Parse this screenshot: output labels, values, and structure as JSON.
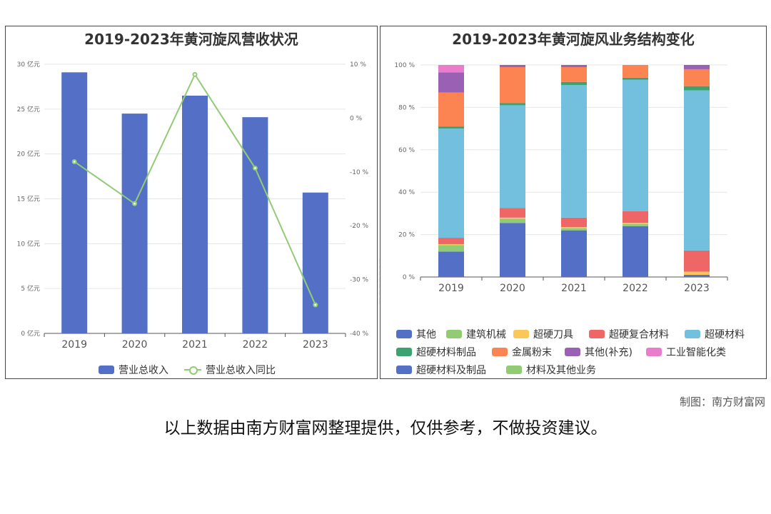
{
  "credit": "制图：南方财富网",
  "disclaimer": "以上数据由南方财富网整理提供，仅供参考，不做投资建议。",
  "watermark": "南方财富网",
  "chart_data": [
    {
      "type": "bar",
      "title": "2019-2023年黄河旋风营收状况",
      "categories": [
        "2019",
        "2020",
        "2021",
        "2022",
        "2023"
      ],
      "series": [
        {
          "name": "营业总收入",
          "type": "bar",
          "axis": "left",
          "color": "#5470c6",
          "values": [
            29.1,
            24.5,
            26.5,
            24.1,
            15.7
          ]
        },
        {
          "name": "营业总收入同比",
          "type": "line",
          "axis": "right",
          "color": "#91cc75",
          "values": [
            -8.1,
            -15.9,
            8.1,
            -9.3,
            -34.7
          ]
        }
      ],
      "y_left": {
        "min": 0,
        "max": 30,
        "ticks": [
          {
            "v": 0,
            "label": "0 亿元"
          },
          {
            "v": 5,
            "label": "5 亿元"
          },
          {
            "v": 10,
            "label": "10 亿元"
          },
          {
            "v": 15,
            "label": "15 亿元"
          },
          {
            "v": 20,
            "label": "20 亿元"
          },
          {
            "v": 25,
            "label": "25 亿元"
          },
          {
            "v": 30,
            "label": "30 亿元"
          }
        ]
      },
      "y_right": {
        "min": -40,
        "max": 10,
        "ticks": [
          {
            "v": -40,
            "label": "-40 %"
          },
          {
            "v": -30,
            "label": "-30 %"
          },
          {
            "v": -20,
            "label": "-20 %"
          },
          {
            "v": -10,
            "label": "-10 %"
          },
          {
            "v": 0,
            "label": "0 %"
          },
          {
            "v": 10,
            "label": "10 %"
          }
        ]
      },
      "grid": true,
      "legend_position": "bottom"
    },
    {
      "type": "bar",
      "stacked": true,
      "title": "2019-2023年黄河旋风业务结构变化",
      "categories": [
        "2019",
        "2020",
        "2021",
        "2022",
        "2023"
      ],
      "series": [
        {
          "name": "其他",
          "color": "#5470c6",
          "values": [
            12,
            25.5,
            22,
            24,
            1
          ]
        },
        {
          "name": "建筑机械",
          "color": "#91cc75",
          "values": [
            3,
            2,
            1,
            1,
            0
          ]
        },
        {
          "name": "超硬刀具",
          "color": "#fac858",
          "values": [
            0.5,
            0.5,
            0.5,
            0.5,
            1.5
          ]
        },
        {
          "name": "超硬复合材料",
          "color": "#ee6666",
          "values": [
            3,
            4.5,
            4.5,
            5.5,
            10
          ]
        },
        {
          "name": "超硬材料",
          "color": "#73c0de",
          "values": [
            51.5,
            48.5,
            62.5,
            62,
            75.5
          ]
        },
        {
          "name": "超硬材料制品",
          "color": "#3ba272",
          "values": [
            1,
            1,
            1.5,
            1,
            2
          ]
        },
        {
          "name": "金属粉末",
          "color": "#fc8452",
          "values": [
            16,
            17,
            7,
            6,
            8
          ]
        },
        {
          "name": "其他(补充)",
          "color": "#9a60b4",
          "values": [
            9.5,
            1,
            1,
            0,
            2
          ]
        },
        {
          "name": "工业智能化类",
          "color": "#ea7ccc",
          "values": [
            3.5,
            0,
            0,
            0,
            0
          ]
        },
        {
          "name": "超硬材料及制品",
          "color": "#5470c6",
          "values": [
            0,
            0,
            0,
            0,
            0
          ]
        },
        {
          "name": "材料及其他业务",
          "color": "#91cc75",
          "values": [
            0,
            0,
            0,
            0,
            0
          ]
        }
      ],
      "y": {
        "min": 0,
        "max": 100,
        "ticks": [
          {
            "v": 0,
            "label": "0 %"
          },
          {
            "v": 20,
            "label": "20 %"
          },
          {
            "v": 40,
            "label": "40 %"
          },
          {
            "v": 60,
            "label": "60 %"
          },
          {
            "v": 80,
            "label": "80 %"
          },
          {
            "v": 100,
            "label": "100 %"
          }
        ]
      },
      "grid": true,
      "legend_position": "bottom"
    }
  ]
}
